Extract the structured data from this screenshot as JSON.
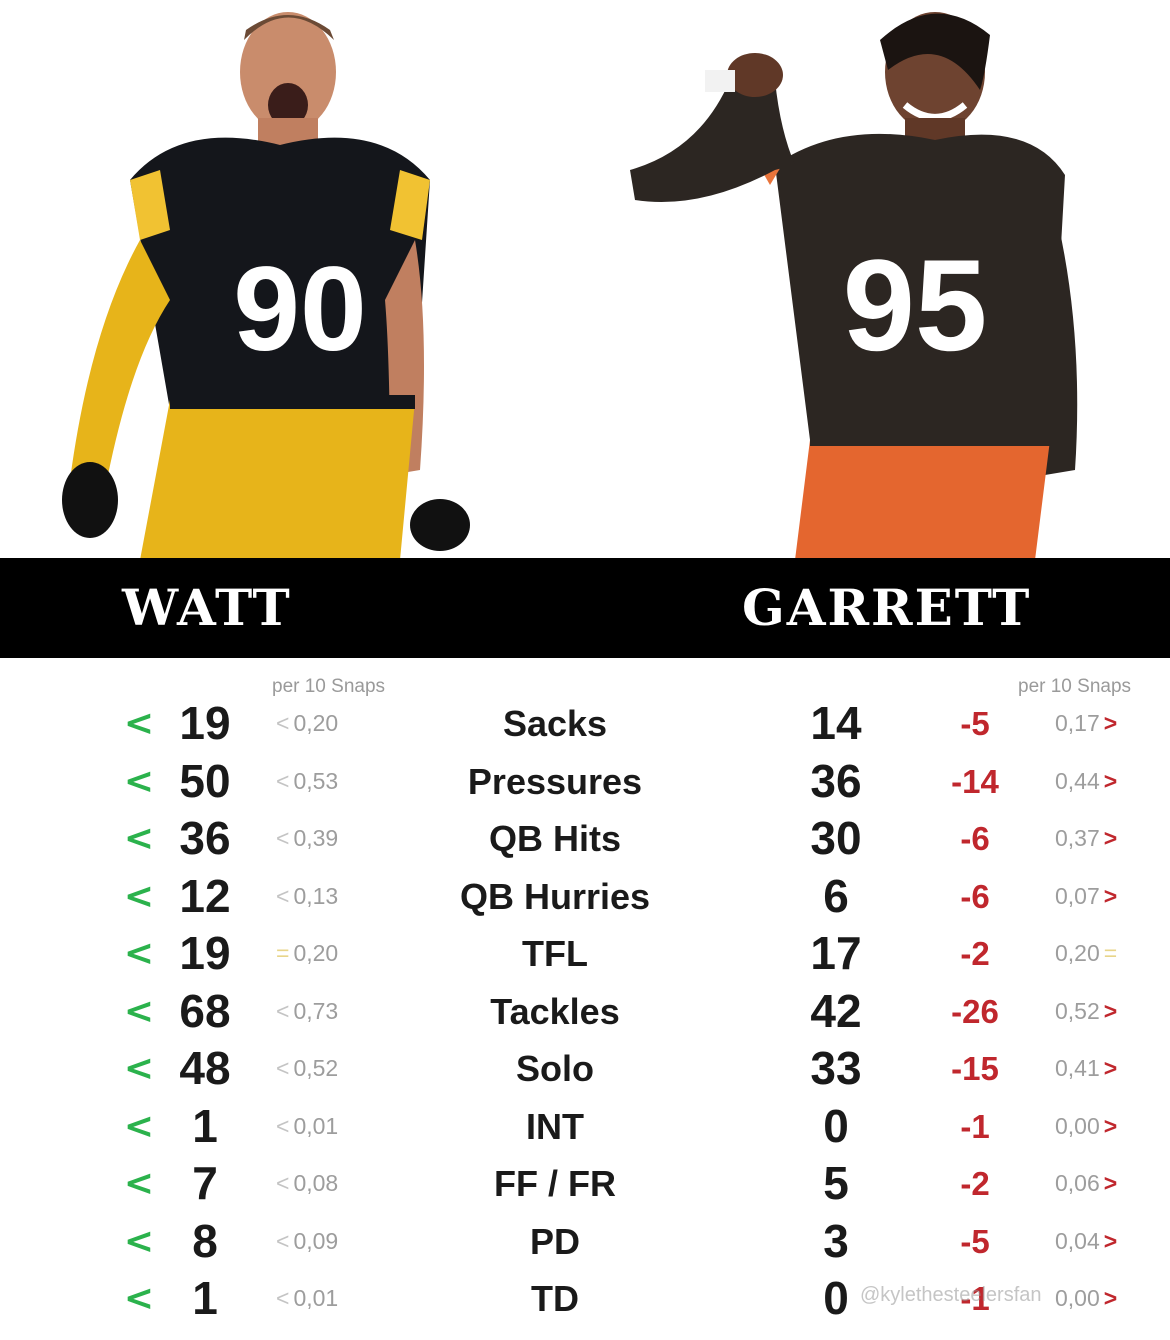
{
  "players": {
    "left": {
      "name": "WATT",
      "jersey_number": "90",
      "colors": {
        "jersey": "#14161b",
        "pants": "#e7b41a",
        "accent": "#f1c232"
      }
    },
    "right": {
      "name": "GARRETT",
      "jersey_number": "95",
      "colors": {
        "jersey": "#2c2622",
        "pants": "#e4662f",
        "accent": "#e8743b"
      }
    }
  },
  "headers": {
    "left_per": "per 10 Snaps",
    "right_per": "per 10 Snaps"
  },
  "colors": {
    "better": "#2bb24c",
    "worse": "#c0272d",
    "equal": "#e8d58a",
    "banner": "#000000"
  },
  "rows": [
    {
      "left_arrow": "<",
      "left_value": "19",
      "left_cmp": "<",
      "left_rate": "0,20",
      "stat": "Sacks",
      "right_value": "14",
      "diff": "-5",
      "right_rate": "0,17",
      "right_cmp": ">"
    },
    {
      "left_arrow": "<",
      "left_value": "50",
      "left_cmp": "<",
      "left_rate": "0,53",
      "stat": "Pressures",
      "right_value": "36",
      "diff": "-14",
      "right_rate": "0,44",
      "right_cmp": ">"
    },
    {
      "left_arrow": "<",
      "left_value": "36",
      "left_cmp": "<",
      "left_rate": "0,39",
      "stat": "QB Hits",
      "right_value": "30",
      "diff": "-6",
      "right_rate": "0,37",
      "right_cmp": ">"
    },
    {
      "left_arrow": "<",
      "left_value": "12",
      "left_cmp": "<",
      "left_rate": "0,13",
      "stat": "QB Hurries",
      "right_value": "6",
      "diff": "-6",
      "right_rate": "0,07",
      "right_cmp": ">"
    },
    {
      "left_arrow": "<",
      "left_value": "19",
      "left_cmp": "=",
      "left_rate": "0,20",
      "stat": "TFL",
      "right_value": "17",
      "diff": "-2",
      "right_rate": "0,20",
      "right_cmp": "="
    },
    {
      "left_arrow": "<",
      "left_value": "68",
      "left_cmp": "<",
      "left_rate": "0,73",
      "stat": "Tackles",
      "right_value": "42",
      "diff": "-26",
      "right_rate": "0,52",
      "right_cmp": ">"
    },
    {
      "left_arrow": "<",
      "left_value": "48",
      "left_cmp": "<",
      "left_rate": "0,52",
      "stat": "Solo",
      "right_value": "33",
      "diff": "-15",
      "right_rate": "0,41",
      "right_cmp": ">"
    },
    {
      "left_arrow": "<",
      "left_value": "1",
      "left_cmp": "<",
      "left_rate": "0,01",
      "stat": "INT",
      "right_value": "0",
      "diff": "-1",
      "right_rate": "0,00",
      "right_cmp": ">"
    },
    {
      "left_arrow": "<",
      "left_value": "7",
      "left_cmp": "<",
      "left_rate": "0,08",
      "stat": "FF / FR",
      "right_value": "5",
      "diff": "-2",
      "right_rate": "0,06",
      "right_cmp": ">"
    },
    {
      "left_arrow": "<",
      "left_value": "8",
      "left_cmp": "<",
      "left_rate": "0,09",
      "stat": "PD",
      "right_value": "3",
      "diff": "-5",
      "right_rate": "0,04",
      "right_cmp": ">"
    },
    {
      "left_arrow": "<",
      "left_value": "1",
      "left_cmp": "<",
      "left_rate": "0,01",
      "stat": "TD",
      "right_value": "0",
      "diff": "-1",
      "right_rate": "0,00",
      "right_cmp": ">"
    }
  ],
  "watermark": "@kylethesteelersfan"
}
